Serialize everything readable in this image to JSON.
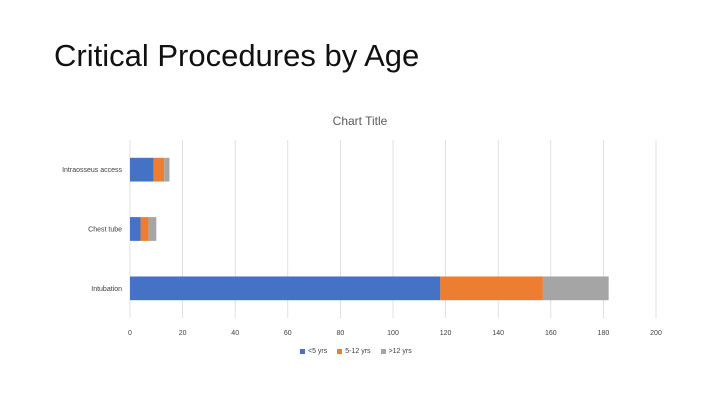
{
  "slide": {
    "title": "Critical Procedures by Age"
  },
  "chart_data": {
    "type": "bar",
    "orientation": "horizontal",
    "stacked": true,
    "title": "Chart Title",
    "categories": [
      "Intubation",
      "Chest tube",
      "Intraosseus access"
    ],
    "series": [
      {
        "name": "<5 yrs",
        "values": [
          118,
          4,
          9
        ],
        "color": "#4472C4"
      },
      {
        "name": "5-12 yrs",
        "values": [
          39,
          3,
          4
        ],
        "color": "#ED7D31"
      },
      {
        "name": ">12 yrs",
        "values": [
          25,
          3,
          2
        ],
        "color": "#A5A5A5"
      }
    ],
    "xlim": [
      0,
      200
    ],
    "xticks": [
      "0",
      "20",
      "40",
      "60",
      "80",
      "100",
      "120",
      "140",
      "160",
      "180",
      "200"
    ],
    "grid": "vertical",
    "legend_position": "bottom"
  }
}
